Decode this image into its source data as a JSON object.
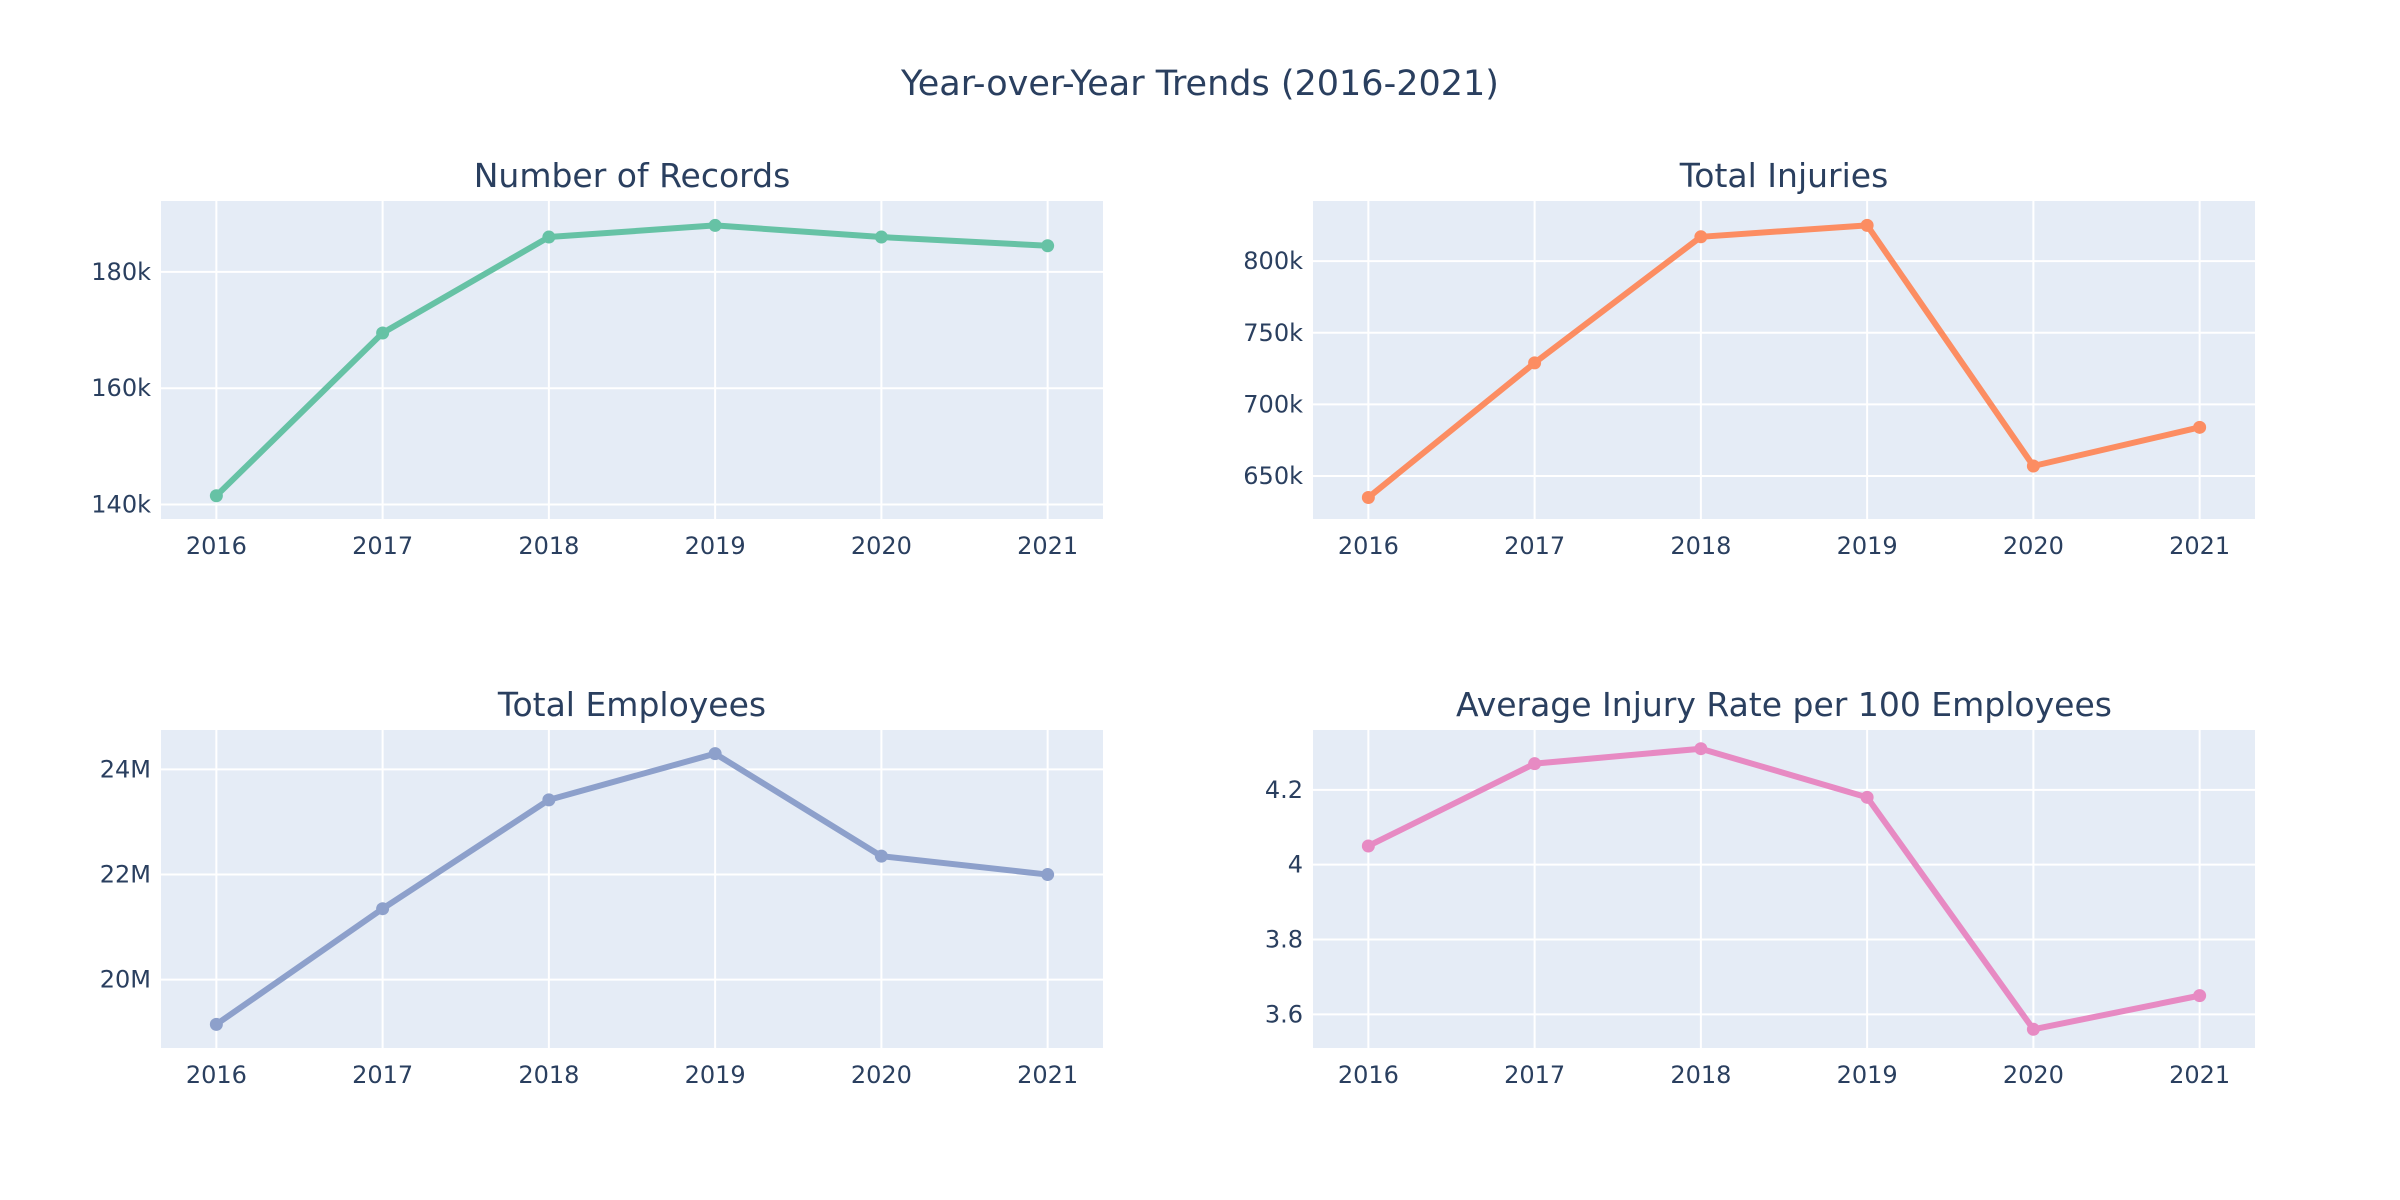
{
  "figure": {
    "title": "Year-over-Year Trends (2016-2021)"
  },
  "chart_data": [
    {
      "type": "line",
      "title": "Number of Records",
      "x": [
        2016,
        2017,
        2018,
        2019,
        2020,
        2021
      ],
      "values": [
        141500,
        169500,
        186000,
        188000,
        186000,
        184500
      ],
      "ylim": [
        137500,
        192200
      ],
      "yticks": [
        140000,
        160000,
        180000
      ],
      "ytick_labels": [
        "140k",
        "160k",
        "180k"
      ],
      "color": "#66c2a5",
      "grid": true
    },
    {
      "type": "line",
      "title": "Total Injuries",
      "x": [
        2016,
        2017,
        2018,
        2019,
        2020,
        2021
      ],
      "values": [
        635000,
        729000,
        817000,
        825000,
        657000,
        684000
      ],
      "ylim": [
        620000,
        842000
      ],
      "yticks": [
        650000,
        700000,
        750000,
        800000
      ],
      "ytick_labels": [
        "650k",
        "700k",
        "750k",
        "800k"
      ],
      "color": "#fc8d62",
      "grid": true
    },
    {
      "type": "line",
      "title": "Total Employees",
      "x": [
        2016,
        2017,
        2018,
        2019,
        2020,
        2021
      ],
      "values": [
        19150000,
        21350000,
        23420000,
        24300000,
        22350000,
        22000000
      ],
      "ylim": [
        18700000,
        24750000
      ],
      "yticks": [
        20000000,
        22000000,
        24000000
      ],
      "ytick_labels": [
        "20M",
        "22M",
        "24M"
      ],
      "color": "#8da0cb",
      "grid": true
    },
    {
      "type": "line",
      "title": "Average Injury Rate per 100 Employees",
      "x": [
        2016,
        2017,
        2018,
        2019,
        2020,
        2021
      ],
      "values": [
        4.05,
        4.27,
        4.31,
        4.18,
        3.56,
        3.65
      ],
      "ylim": [
        3.51,
        4.36
      ],
      "yticks": [
        3.6,
        3.8,
        4.0,
        4.2
      ],
      "ytick_labels": [
        "3.6",
        "3.8",
        "4",
        "4.2"
      ],
      "color": "#e78ac3",
      "grid": true
    }
  ]
}
